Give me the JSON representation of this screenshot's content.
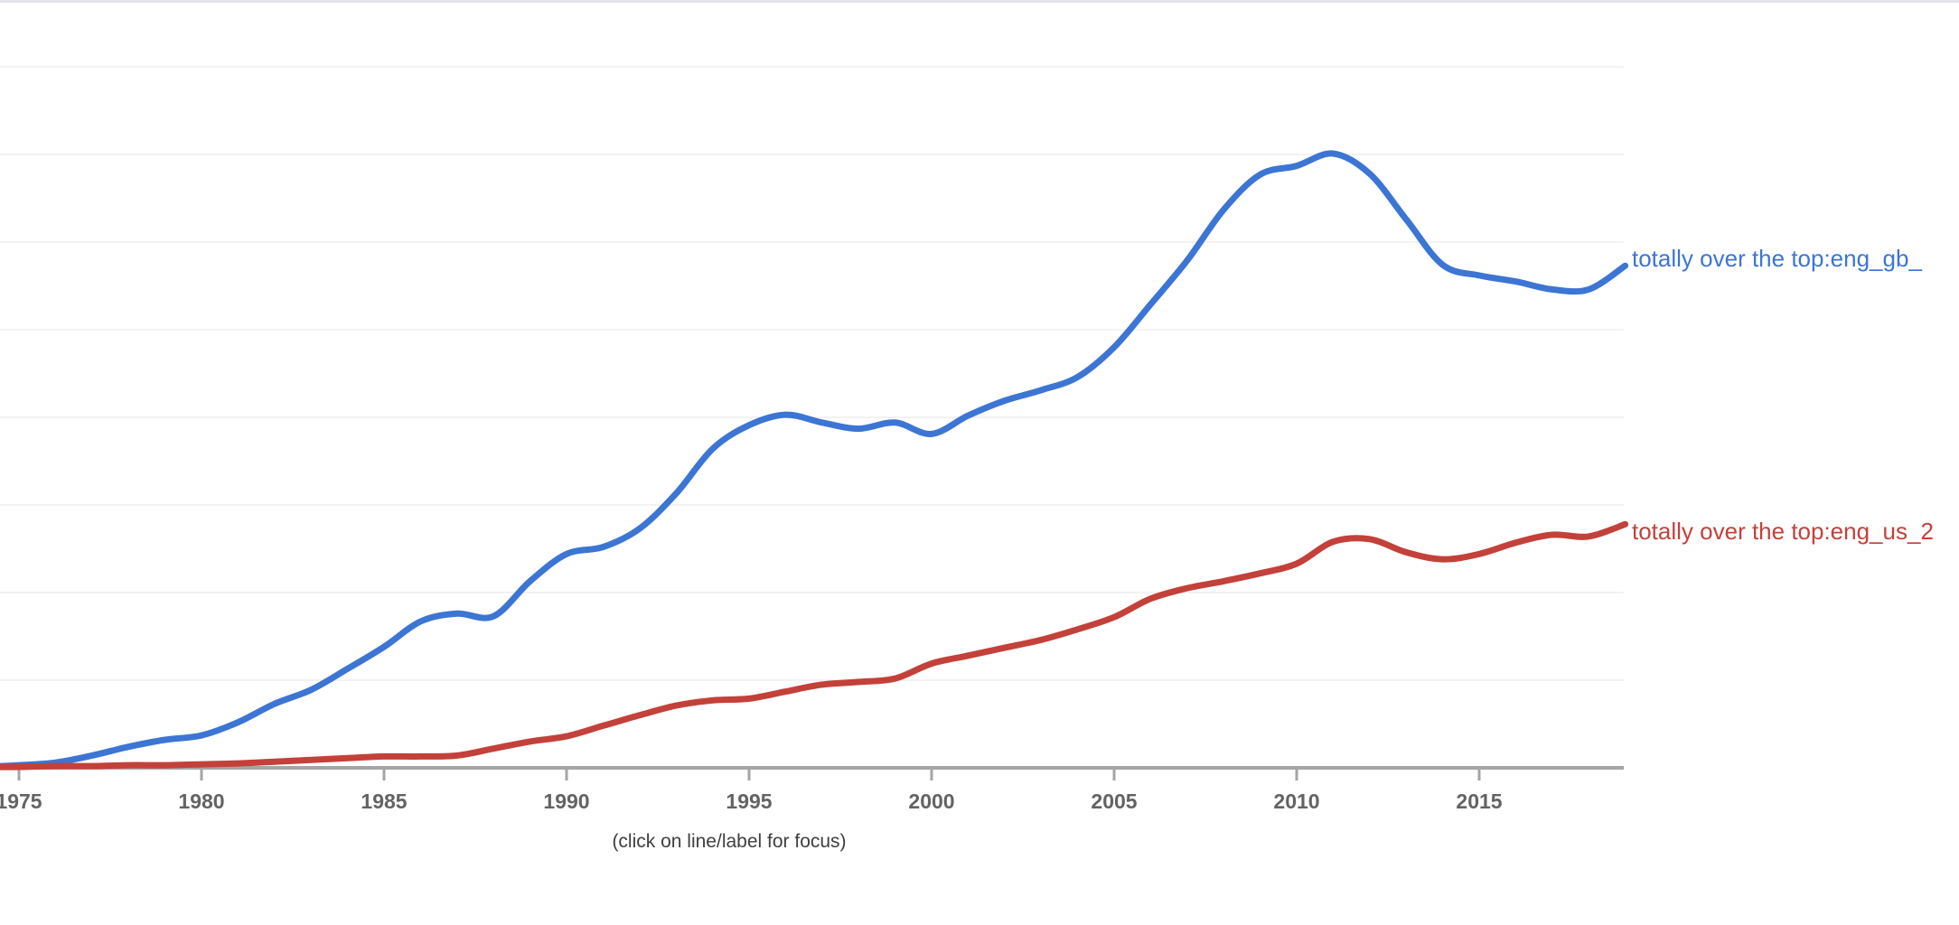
{
  "page": {
    "background": "#ffffff",
    "top_edge_color": "#e3e3ee"
  },
  "hint": {
    "text": "(click on line/label for focus)"
  },
  "axis": {
    "line_color": "#a5a5a5",
    "tick_label_color": "#636363",
    "gridline_color": "#f2f2f2"
  },
  "chart_data": {
    "type": "line",
    "title": "",
    "xlabel": "",
    "ylabel": "",
    "grid": true,
    "legend_position": "right-end-of-line labels",
    "x_tick_labels": [
      "1975",
      "1980",
      "1985",
      "1990",
      "1995",
      "2000",
      "2005",
      "2010",
      "2015"
    ],
    "x_range": [
      1974.4,
      2019
    ],
    "y_axis_note": "y-axis tick labels are cropped out of the visible area; values below are in gridline units (1.0 = one horizontal gridline spacing above the baseline), 8 gridlines visible",
    "ylim": [
      0,
      8
    ],
    "years": [
      1974,
      1975,
      1976,
      1977,
      1978,
      1979,
      1980,
      1981,
      1982,
      1983,
      1984,
      1985,
      1986,
      1987,
      1988,
      1989,
      1990,
      1991,
      1992,
      1993,
      1994,
      1995,
      1996,
      1997,
      1998,
      1999,
      2000,
      2001,
      2002,
      2003,
      2004,
      2005,
      2006,
      2007,
      2008,
      2009,
      2010,
      2011,
      2012,
      2013,
      2014,
      2015,
      2016,
      2017,
      2018,
      2019
    ],
    "series": [
      {
        "id": "eng-gb",
        "name": "totally over the top:eng_gb_",
        "color": "#3c75d4",
        "values": [
          0.01,
          0.03,
          0.06,
          0.14,
          0.24,
          0.32,
          0.37,
          0.52,
          0.73,
          0.89,
          1.13,
          1.38,
          1.67,
          1.76,
          1.73,
          2.13,
          2.44,
          2.52,
          2.73,
          3.13,
          3.64,
          3.91,
          4.03,
          3.94,
          3.87,
          3.94,
          3.81,
          4.02,
          4.19,
          4.31,
          4.46,
          4.8,
          5.29,
          5.79,
          6.37,
          6.77,
          6.87,
          7.01,
          6.78,
          6.26,
          5.74,
          5.62,
          5.55,
          5.46,
          5.46,
          5.73
        ]
      },
      {
        "id": "eng-us",
        "name": "totally over the top:eng_us_2",
        "color": "#c3413a",
        "values": [
          0.01,
          0.01,
          0.02,
          0.02,
          0.03,
          0.03,
          0.04,
          0.05,
          0.07,
          0.09,
          0.11,
          0.13,
          0.13,
          0.14,
          0.22,
          0.3,
          0.36,
          0.48,
          0.6,
          0.71,
          0.77,
          0.79,
          0.87,
          0.95,
          0.98,
          1.02,
          1.19,
          1.28,
          1.37,
          1.46,
          1.58,
          1.72,
          1.93,
          2.05,
          2.13,
          2.22,
          2.33,
          2.58,
          2.61,
          2.46,
          2.38,
          2.44,
          2.57,
          2.66,
          2.64,
          2.78
        ]
      }
    ]
  }
}
